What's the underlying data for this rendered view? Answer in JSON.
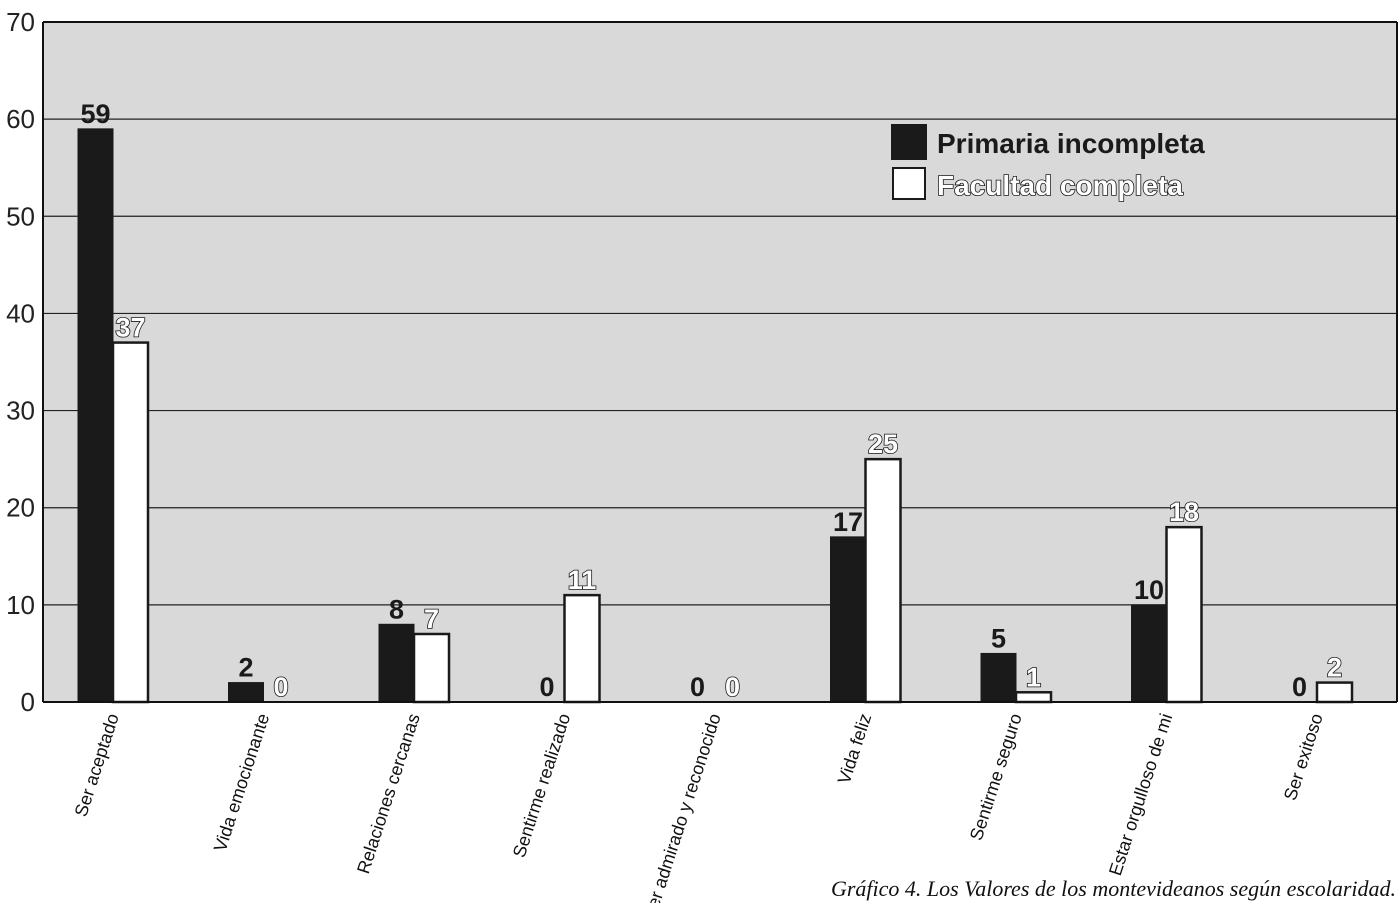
{
  "chart_data": {
    "type": "bar",
    "categories": [
      "Ser aceptado",
      "Vida emocionante",
      "Relaciones cercanas",
      "Sentirme realizado",
      "Ser admirado y reconocido",
      "Vida feliz",
      "Sentirme seguro",
      "Estar orgulloso de mi",
      "Ser exitoso"
    ],
    "series": [
      {
        "name": "Primaria incompleta",
        "values": [
          59,
          2,
          8,
          0,
          0,
          17,
          5,
          10,
          0
        ],
        "color": "#1a1a1a"
      },
      {
        "name": "Facultad completa",
        "values": [
          37,
          0,
          7,
          11,
          0,
          25,
          1,
          18,
          2
        ],
        "color": "#ffffff"
      }
    ],
    "ylim": [
      0,
      70
    ],
    "yticks": [
      0,
      10,
      20,
      30,
      40,
      50,
      60,
      70
    ],
    "grid": true,
    "legend_position": "top-right",
    "plot_background": "#d9d9d9"
  },
  "caption": "Gráfico 4.  Los Valores de los montevideanos según escolaridad."
}
